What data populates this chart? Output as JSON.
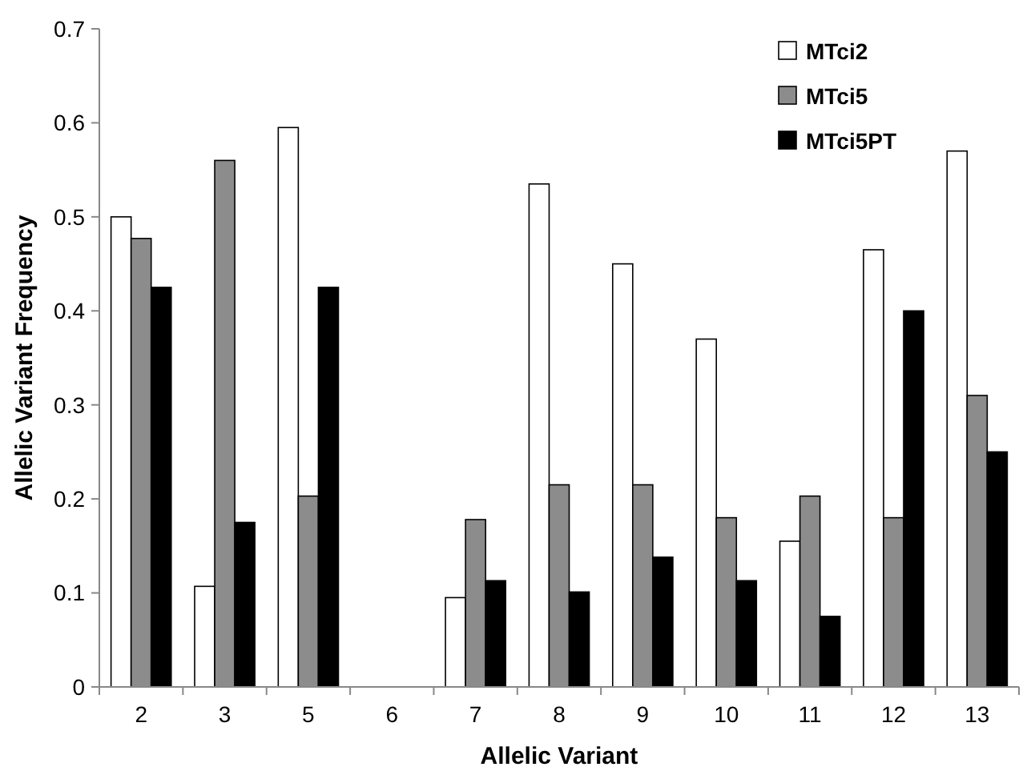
{
  "chart_data": {
    "type": "bar",
    "xlabel": "Allelic Variant",
    "ylabel": "Allelic Variant Frequency",
    "categories": [
      "2",
      "3",
      "5",
      "6",
      "7",
      "8",
      "9",
      "10",
      "11",
      "12",
      "13"
    ],
    "series": [
      {
        "name": "MTci2",
        "color": "#ffffff",
        "values": [
          0.5,
          0.107,
          0.595,
          0,
          0.095,
          0.535,
          0.45,
          0.37,
          0.155,
          0.465,
          0.57
        ]
      },
      {
        "name": "MTci5",
        "color": "#8c8c8c",
        "values": [
          0.477,
          0.56,
          0.203,
          0,
          0.178,
          0.215,
          0.215,
          0.18,
          0.203,
          0.18,
          0.31
        ]
      },
      {
        "name": "MTci5PT",
        "color": "#000000",
        "values": [
          0.425,
          0.175,
          0.425,
          0,
          0.113,
          0.101,
          0.138,
          0.113,
          0.075,
          0.4,
          0.25
        ]
      }
    ],
    "ylim": [
      0,
      0.7
    ],
    "yticks": [
      {
        "value": 0,
        "label": "0"
      },
      0.1,
      0.2,
      0.3,
      0.4,
      0.5,
      0.6,
      0.7
    ],
    "grid": false,
    "legend": "top right"
  }
}
